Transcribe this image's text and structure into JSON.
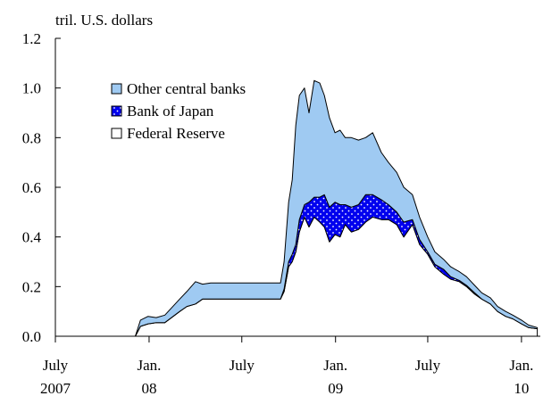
{
  "chart_data": {
    "type": "area",
    "stacked": true,
    "ylabel": "tril. U.S. dollars",
    "ylim": [
      0,
      1.2
    ],
    "yticks": [
      0.0,
      0.2,
      0.4,
      0.6,
      0.8,
      1.0,
      1.2
    ],
    "ytick_labels": [
      "0.0",
      "0.2",
      "0.4",
      "0.6",
      "0.8",
      "1.0",
      "1.2"
    ],
    "xlim": [
      "2007-07-01",
      "2010-02-07"
    ],
    "xticks": [
      {
        "date": "2007-07-01",
        "line1": "July",
        "line2": "2007"
      },
      {
        "date": "2008-01-01",
        "line1": "Jan.",
        "line2": "08"
      },
      {
        "date": "2008-07-01",
        "line1": "July",
        "line2": ""
      },
      {
        "date": "2009-01-01",
        "line1": "Jan.",
        "line2": "09"
      },
      {
        "date": "2009-07-01",
        "line1": "July",
        "line2": ""
      },
      {
        "date": "2010-01-01",
        "line1": "Jan.",
        "line2": "10"
      }
    ],
    "legend_placement": "upper-left",
    "grid": false,
    "x": [
      "2007-12-05",
      "2007-12-15",
      "2007-12-30",
      "2008-01-15",
      "2008-02-01",
      "2008-03-01",
      "2008-03-15",
      "2008-04-01",
      "2008-04-15",
      "2008-05-01",
      "2008-06-01",
      "2008-07-01",
      "2008-08-01",
      "2008-09-01",
      "2008-09-15",
      "2008-09-22",
      "2008-10-01",
      "2008-10-08",
      "2008-10-15",
      "2008-10-22",
      "2008-11-01",
      "2008-11-10",
      "2008-11-20",
      "2008-12-01",
      "2008-12-10",
      "2008-12-20",
      "2008-12-31",
      "2009-01-10",
      "2009-01-20",
      "2009-02-01",
      "2009-02-15",
      "2009-03-01",
      "2009-03-15",
      "2009-04-01",
      "2009-04-15",
      "2009-05-01",
      "2009-05-15",
      "2009-06-01",
      "2009-06-15",
      "2009-07-01",
      "2009-07-15",
      "2009-08-01",
      "2009-08-15",
      "2009-09-01",
      "2009-09-15",
      "2009-10-01",
      "2009-10-15",
      "2009-11-01",
      "2009-11-15",
      "2009-12-01",
      "2009-12-15",
      "2010-01-01",
      "2010-01-15",
      "2010-02-01"
    ],
    "series": [
      {
        "name": "Federal Reserve",
        "color": "#ffffff",
        "values": [
          0.0,
          0.04,
          0.05,
          0.055,
          0.055,
          0.1,
          0.12,
          0.13,
          0.15,
          0.15,
          0.15,
          0.15,
          0.15,
          0.15,
          0.15,
          0.18,
          0.28,
          0.3,
          0.34,
          0.42,
          0.48,
          0.44,
          0.48,
          0.46,
          0.44,
          0.38,
          0.41,
          0.4,
          0.45,
          0.42,
          0.43,
          0.46,
          0.48,
          0.47,
          0.47,
          0.45,
          0.4,
          0.45,
          0.37,
          0.33,
          0.28,
          0.25,
          0.23,
          0.22,
          0.2,
          0.17,
          0.15,
          0.13,
          0.1,
          0.08,
          0.07,
          0.05,
          0.035,
          0.03
        ]
      },
      {
        "name": "Bank of Japan",
        "color": "#0000ee",
        "values": [
          0.0,
          0.0,
          0.0,
          0.0,
          0.0,
          0.0,
          0.0,
          0.0,
          0.0,
          0.0,
          0.0,
          0.0,
          0.0,
          0.0,
          0.0,
          0.01,
          0.02,
          0.03,
          0.03,
          0.05,
          0.05,
          0.1,
          0.08,
          0.1,
          0.13,
          0.14,
          0.13,
          0.13,
          0.08,
          0.1,
          0.1,
          0.11,
          0.09,
          0.08,
          0.06,
          0.05,
          0.06,
          0.02,
          0.02,
          0.01,
          0.01,
          0.02,
          0.01,
          0.005,
          0.005,
          0.005,
          0.0,
          0.0,
          0.0,
          0.0,
          0.0,
          0.0,
          0.0,
          0.0
        ]
      },
      {
        "name": "Other central banks",
        "color": "#9fcaf2",
        "values": [
          0.0,
          0.025,
          0.03,
          0.02,
          0.03,
          0.05,
          0.06,
          0.09,
          0.06,
          0.065,
          0.065,
          0.065,
          0.065,
          0.065,
          0.065,
          0.11,
          0.24,
          0.3,
          0.48,
          0.5,
          0.47,
          0.36,
          0.47,
          0.46,
          0.4,
          0.36,
          0.28,
          0.3,
          0.27,
          0.28,
          0.26,
          0.23,
          0.25,
          0.19,
          0.17,
          0.16,
          0.14,
          0.1,
          0.09,
          0.06,
          0.05,
          0.04,
          0.04,
          0.035,
          0.035,
          0.03,
          0.025,
          0.025,
          0.02,
          0.02,
          0.015,
          0.015,
          0.01,
          0.005
        ]
      }
    ]
  }
}
